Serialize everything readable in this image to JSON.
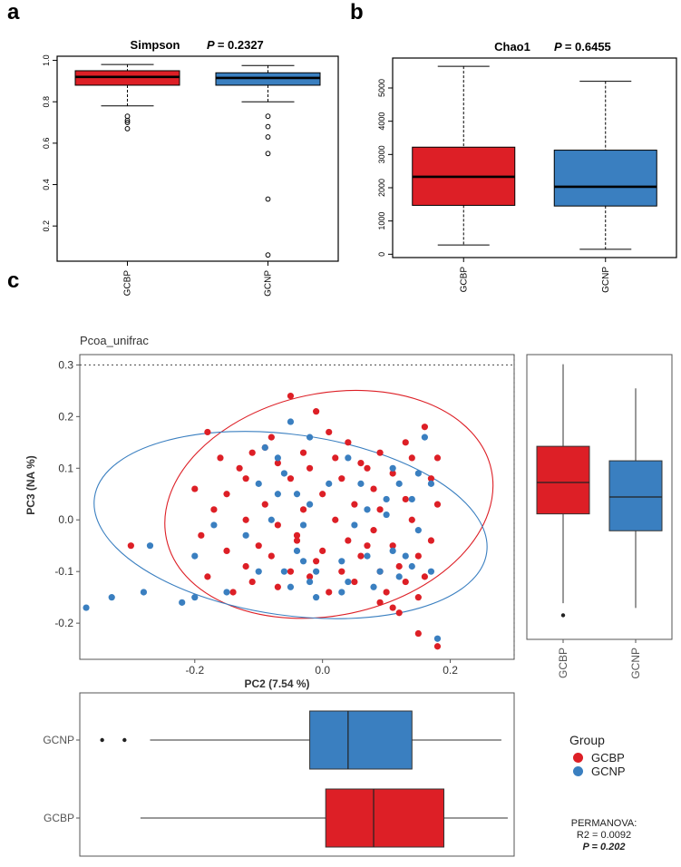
{
  "colors": {
    "gcbp": "#dd1f26",
    "gcnp": "#3a7fc0",
    "axis": "#000000",
    "ggaxis": "#555555"
  },
  "panels": {
    "a": "a",
    "b": "b",
    "c": "c"
  },
  "chart_data": [
    {
      "id": "a",
      "type": "boxplot",
      "title": "Simpson",
      "pvalue_label": "P",
      "pvalue_text": "= 0.2327",
      "categories": [
        "GCBP",
        "GCNP"
      ],
      "yticks": [
        "0.2",
        "0.4",
        "0.6",
        "0.8",
        "1.0"
      ],
      "ylim": [
        0.03,
        1.02
      ],
      "boxes": [
        {
          "name": "GCBP",
          "min": 0.78,
          "q1": 0.88,
          "median": 0.92,
          "q3": 0.95,
          "max": 0.98,
          "outliers": [
            0.73,
            0.71,
            0.7,
            0.67
          ]
        },
        {
          "name": "GCNP",
          "min": 0.8,
          "q1": 0.88,
          "median": 0.915,
          "q3": 0.94,
          "max": 0.975,
          "outliers": [
            0.73,
            0.68,
            0.63,
            0.55,
            0.33,
            0.06
          ]
        }
      ]
    },
    {
      "id": "b",
      "type": "boxplot",
      "title": "Chao1",
      "pvalue_label": "P",
      "pvalue_text": "= 0.6455",
      "categories": [
        "GCBP",
        "GCNP"
      ],
      "yticks": [
        "0",
        "1000",
        "2000",
        "3000",
        "4000",
        "5000"
      ],
      "ylim": [
        -100,
        5900
      ],
      "boxes": [
        {
          "name": "GCBP",
          "min": 280,
          "q1": 1470,
          "median": 2330,
          "q3": 3220,
          "max": 5650,
          "outliers": []
        },
        {
          "name": "GCNP",
          "min": 150,
          "q1": 1450,
          "median": 2030,
          "q3": 3130,
          "max": 5200,
          "outliers": []
        }
      ]
    },
    {
      "id": "c",
      "type": "scatter",
      "title": "Pcoa_unifrac",
      "xlabel": "PC2 (7.54 %)",
      "ylabel": "PC3 (NA %)",
      "xticks": [
        "-0.2",
        "0.0",
        "0.2"
      ],
      "xtick_values": [
        -0.2,
        0.0,
        0.2
      ],
      "yticks": [
        "-0.2",
        "-0.1",
        "0.0",
        "0.1",
        "0.2",
        "0.3"
      ],
      "ytick_values": [
        -0.2,
        -0.1,
        0.0,
        0.1,
        0.2,
        0.3
      ],
      "xlim": [
        -0.38,
        0.3
      ],
      "ylim": [
        -0.27,
        0.32
      ],
      "reference_lines": {
        "x": 0.3,
        "y": 0.3
      },
      "ellipses": [
        {
          "name": "GCBP",
          "cx": 0.01,
          "cy": 0.03,
          "rx": 0.26,
          "ry": 0.215,
          "angle_deg": -12
        },
        {
          "name": "GCNP",
          "cx": -0.05,
          "cy": -0.01,
          "rx": 0.31,
          "ry": 0.175,
          "angle_deg": 8
        }
      ],
      "series": [
        {
          "name": "GCBP",
          "points": [
            [
              -0.05,
              0.24
            ],
            [
              -0.01,
              0.21
            ],
            [
              0.16,
              0.18
            ],
            [
              -0.18,
              0.17
            ],
            [
              -0.08,
              0.16
            ],
            [
              0.04,
              0.15
            ],
            [
              0.13,
              0.15
            ],
            [
              -0.03,
              0.13
            ],
            [
              0.09,
              0.13
            ],
            [
              -0.16,
              0.12
            ],
            [
              -0.11,
              0.13
            ],
            [
              0.18,
              0.12
            ],
            [
              0.02,
              0.12
            ],
            [
              0.14,
              0.12
            ],
            [
              -0.07,
              0.11
            ],
            [
              -0.13,
              0.1
            ],
            [
              0.07,
              0.1
            ],
            [
              -0.02,
              0.1
            ],
            [
              0.11,
              0.09
            ],
            [
              -0.12,
              0.08
            ],
            [
              0.03,
              0.08
            ],
            [
              0.17,
              0.08
            ],
            [
              -0.05,
              0.08
            ],
            [
              -0.2,
              0.06
            ],
            [
              0.08,
              0.06
            ],
            [
              -0.15,
              0.05
            ],
            [
              0.0,
              0.05
            ],
            [
              0.13,
              0.04
            ],
            [
              -0.09,
              0.03
            ],
            [
              0.05,
              0.03
            ],
            [
              0.18,
              0.03
            ],
            [
              -0.17,
              0.02
            ],
            [
              -0.03,
              0.02
            ],
            [
              0.09,
              0.02
            ],
            [
              -0.12,
              0.0
            ],
            [
              0.02,
              0.0
            ],
            [
              0.14,
              0.0
            ],
            [
              -0.07,
              -0.01
            ],
            [
              0.08,
              -0.02
            ],
            [
              -0.19,
              -0.03
            ],
            [
              0.17,
              -0.04
            ],
            [
              -0.04,
              -0.04
            ],
            [
              0.04,
              -0.04
            ],
            [
              -0.1,
              -0.05
            ],
            [
              0.11,
              -0.05
            ],
            [
              -0.15,
              -0.06
            ],
            [
              0.0,
              -0.06
            ],
            [
              0.15,
              -0.07
            ],
            [
              -0.08,
              -0.07
            ],
            [
              0.06,
              -0.07
            ],
            [
              -0.01,
              -0.08
            ],
            [
              -0.12,
              -0.09
            ],
            [
              0.12,
              -0.09
            ],
            [
              0.03,
              -0.1
            ],
            [
              -0.05,
              -0.1
            ],
            [
              0.09,
              -0.1
            ],
            [
              -0.18,
              -0.11
            ],
            [
              0.16,
              -0.11
            ],
            [
              -0.02,
              -0.11
            ],
            [
              -0.11,
              -0.12
            ],
            [
              0.05,
              -0.12
            ],
            [
              0.13,
              -0.12
            ],
            [
              -0.07,
              -0.13
            ],
            [
              0.01,
              -0.14
            ],
            [
              0.1,
              -0.14
            ],
            [
              -0.14,
              -0.14
            ],
            [
              0.15,
              -0.15
            ],
            [
              0.09,
              -0.16
            ],
            [
              0.11,
              -0.17
            ],
            [
              0.12,
              -0.18
            ],
            [
              0.15,
              -0.22
            ],
            [
              0.18,
              -0.245
            ],
            [
              -0.3,
              -0.05
            ],
            [
              0.06,
              0.11
            ],
            [
              -0.09,
              0.14
            ],
            [
              0.01,
              0.17
            ],
            [
              0.07,
              -0.05
            ],
            [
              -0.04,
              -0.03
            ]
          ]
        },
        {
          "name": "GCNP",
          "points": [
            [
              -0.05,
              0.19
            ],
            [
              0.16,
              0.16
            ],
            [
              -0.02,
              0.16
            ],
            [
              -0.09,
              0.14
            ],
            [
              0.11,
              0.1
            ],
            [
              0.04,
              0.12
            ],
            [
              -0.06,
              0.09
            ],
            [
              0.17,
              0.07
            ],
            [
              0.12,
              0.07
            ],
            [
              -0.1,
              0.07
            ],
            [
              0.01,
              0.07
            ],
            [
              -0.04,
              0.05
            ],
            [
              -0.07,
              0.05
            ],
            [
              0.14,
              0.04
            ],
            [
              0.1,
              0.04
            ],
            [
              -0.02,
              0.03
            ],
            [
              0.07,
              0.02
            ],
            [
              -0.08,
              0.0
            ],
            [
              -0.03,
              -0.01
            ],
            [
              0.05,
              -0.01
            ],
            [
              -0.17,
              -0.01
            ],
            [
              0.15,
              -0.02
            ],
            [
              -0.12,
              -0.03
            ],
            [
              -0.04,
              -0.06
            ],
            [
              0.11,
              -0.06
            ],
            [
              0.07,
              -0.07
            ],
            [
              -0.2,
              -0.07
            ],
            [
              0.13,
              -0.07
            ],
            [
              0.03,
              -0.08
            ],
            [
              -0.03,
              -0.08
            ],
            [
              -0.1,
              -0.1
            ],
            [
              0.14,
              -0.09
            ],
            [
              0.09,
              -0.1
            ],
            [
              -0.06,
              -0.1
            ],
            [
              -0.01,
              -0.1
            ],
            [
              0.17,
              -0.1
            ],
            [
              0.04,
              -0.12
            ],
            [
              -0.02,
              -0.12
            ],
            [
              0.08,
              -0.13
            ],
            [
              0.12,
              -0.11
            ],
            [
              -0.05,
              -0.13
            ],
            [
              0.03,
              -0.14
            ],
            [
              -0.15,
              -0.14
            ],
            [
              -0.01,
              -0.15
            ],
            [
              -0.27,
              -0.05
            ],
            [
              -0.28,
              -0.14
            ],
            [
              -0.33,
              -0.15
            ],
            [
              -0.37,
              -0.17
            ],
            [
              -0.22,
              -0.16
            ],
            [
              -0.2,
              -0.15
            ],
            [
              0.18,
              -0.23
            ],
            [
              0.06,
              0.07
            ],
            [
              0.15,
              0.09
            ],
            [
              -0.07,
              0.12
            ],
            [
              0.1,
              0.01
            ]
          ]
        }
      ]
    },
    {
      "id": "c-right",
      "type": "boxplot",
      "orientation": "vertical",
      "categories": [
        "GCBP",
        "GCNP"
      ],
      "ylim": [
        -0.27,
        0.32
      ],
      "boxes": [
        {
          "name": "GCBP",
          "min": -0.195,
          "q1": -0.01,
          "median": 0.055,
          "q3": 0.13,
          "max": 0.3,
          "outliers": [
            -0.22
          ]
        },
        {
          "name": "GCNP",
          "min": -0.205,
          "q1": -0.045,
          "median": 0.025,
          "q3": 0.1,
          "max": 0.25,
          "outliers": []
        }
      ]
    },
    {
      "id": "c-bottom",
      "type": "boxplot",
      "orientation": "horizontal",
      "categories": [
        "GCNP",
        "GCBP"
      ],
      "xlim": [
        -0.38,
        0.3
      ],
      "boxes": [
        {
          "name": "GCNP",
          "min": -0.27,
          "q1": -0.02,
          "median": 0.04,
          "q3": 0.14,
          "max": 0.28,
          "outliers": [
            -0.345,
            -0.31
          ]
        },
        {
          "name": "GCBP",
          "min": -0.285,
          "q1": 0.005,
          "median": 0.08,
          "q3": 0.19,
          "max": 0.29,
          "outliers": []
        }
      ]
    }
  ],
  "legend": {
    "title": "Group",
    "items": [
      {
        "label": "GCBP",
        "key": "gcbp"
      },
      {
        "label": "GCNP",
        "key": "gcnp"
      }
    ]
  },
  "permanova": {
    "title": "PERMANOVA:",
    "r2": "R2 = 0.0092",
    "p": "P = 0.202"
  }
}
